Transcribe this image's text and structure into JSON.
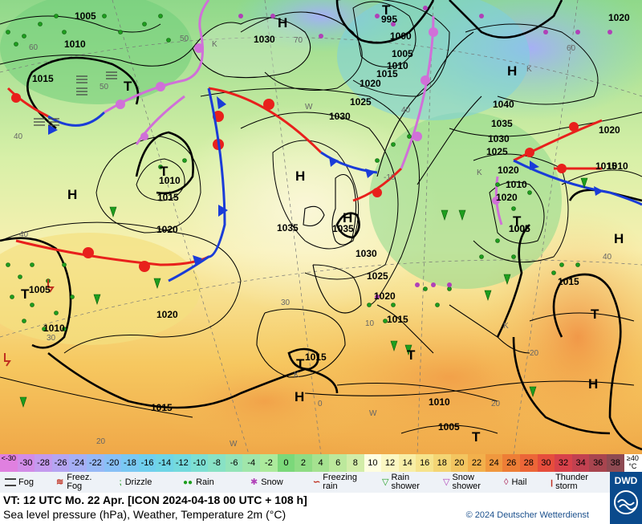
{
  "map": {
    "pressure_labels": [
      "1005",
      "1010",
      "1015",
      "1030",
      "995",
      "1000",
      "1005",
      "1010",
      "1015",
      "1020",
      "1020",
      "1025",
      "1030",
      "1040",
      "1035",
      "1030",
      "1025",
      "1020",
      "1010",
      "1015",
      "1020",
      "1035",
      "1035",
      "1030",
      "1025",
      "1020",
      "1015",
      "1010",
      "1005",
      "1005",
      "1010",
      "1015",
      "1020",
      "1015",
      "1015",
      "1010",
      "1005",
      "1010",
      "1015",
      "1020",
      "1020",
      "1005"
    ],
    "highs": [
      "H",
      "H",
      "H",
      "H",
      "H",
      "H",
      "H",
      "H"
    ],
    "lows": [
      "T",
      "T",
      "T",
      "T",
      "T",
      "T",
      "T",
      "T",
      "T"
    ],
    "temp_isolines": [
      "60",
      "50",
      "40",
      "40",
      "30",
      "20",
      "20",
      "10",
      "0",
      "-10",
      "40",
      "50",
      "60",
      "70",
      "40",
      "30",
      "20"
    ],
    "wind_labels": [
      "K",
      "W",
      "K",
      "K",
      "W",
      "W",
      "K",
      "K"
    ]
  },
  "scale": {
    "values": [
      "<-30",
      "-30",
      "-28",
      "-26",
      "-24",
      "-22",
      "-20",
      "-18",
      "-16",
      "-14",
      "-12",
      "-10",
      "-8",
      "-6",
      "-4",
      "-2",
      "0",
      "2",
      "4",
      "6",
      "8",
      "10",
      "12",
      "14",
      "16",
      "18",
      "20",
      "22",
      "24",
      "26",
      "28",
      "30",
      "32",
      "34",
      "36",
      "38",
      "≥40 °C"
    ],
    "colors": [
      "#e080e0",
      "#d28ce8",
      "#c49aee",
      "#b5a5f2",
      "#a6aff5",
      "#97b8f6",
      "#88c0f6",
      "#7ac8f3",
      "#70cfee",
      "#6fd5e6",
      "#74dadd",
      "#7ddfd2",
      "#88e2c5",
      "#94e4b8",
      "#a0e6aa",
      "#acea9c",
      "#7bd87a",
      "#8fdc84",
      "#a5e290",
      "#bce89c",
      "#d2eda8",
      "#fefee0",
      "#fbf7c2",
      "#f8eea6",
      "#f6e38c",
      "#f4d574",
      "#f3c560",
      "#f2b04c",
      "#f0983e",
      "#ee7e36",
      "#ec6638",
      "#e64d3c",
      "#d8414a",
      "#c24150",
      "#a8454f",
      "#8e4a52",
      "#ffffff"
    ]
  },
  "legend": {
    "items": [
      {
        "icon": "fog-icon",
        "label": "Fog"
      },
      {
        "icon": "freezing-fog-icon",
        "label": "Freez. Fog"
      },
      {
        "icon": "drizzle-icon",
        "label": "Drizzle"
      },
      {
        "icon": "rain-icon",
        "label": "Rain"
      },
      {
        "icon": "snow-icon",
        "label": "Snow"
      },
      {
        "icon": "freezing-rain-icon",
        "label": "Freezing rain"
      },
      {
        "icon": "rain-shower-icon",
        "label": "Rain shower"
      },
      {
        "icon": "snow-shower-icon",
        "label": "Snow shower"
      },
      {
        "icon": "hail-icon",
        "label": "Hail"
      },
      {
        "icon": "thunderstorm-icon",
        "label": "Thunder storm"
      }
    ]
  },
  "info": {
    "valid_time": "VT: 12 UTC Mo.  22 Apr. [ICON 2024-04-18  00 UTC + 108 h]",
    "subtitle": "Sea level pressure (hPa), Weather, Temperature 2m (°C)",
    "copyright": "© 2024 Deutscher Wetterdienst",
    "logo_text": "DWD"
  },
  "colors": {
    "cold_front": "#1a3cd8",
    "warm_front": "#e8201c",
    "occluded_front": "#d070d8",
    "isobar": "#000000"
  }
}
